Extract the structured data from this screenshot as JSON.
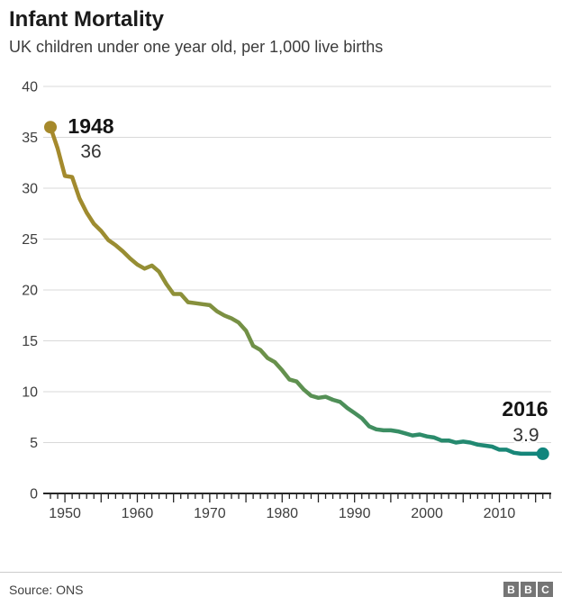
{
  "header": {
    "title": "Infant Mortality",
    "subtitle": "UK children under one year old, per 1,000 live births"
  },
  "chart_data": {
    "type": "line",
    "title": "Infant Mortality",
    "subtitle": "UK children under one year old, per 1,000 live births",
    "xlabel": "",
    "ylabel": "",
    "x": [
      1948,
      1949,
      1950,
      1951,
      1952,
      1953,
      1954,
      1955,
      1956,
      1957,
      1958,
      1959,
      1960,
      1961,
      1962,
      1963,
      1964,
      1965,
      1966,
      1967,
      1968,
      1969,
      1970,
      1971,
      1972,
      1973,
      1974,
      1975,
      1976,
      1977,
      1978,
      1979,
      1980,
      1981,
      1982,
      1983,
      1984,
      1985,
      1986,
      1987,
      1988,
      1989,
      1990,
      1991,
      1992,
      1993,
      1994,
      1995,
      1996,
      1997,
      1998,
      1999,
      2000,
      2001,
      2002,
      2003,
      2004,
      2005,
      2006,
      2007,
      2008,
      2009,
      2010,
      2011,
      2012,
      2013,
      2014,
      2015,
      2016
    ],
    "values": [
      36.0,
      33.9,
      31.2,
      31.1,
      29.0,
      27.6,
      26.5,
      25.8,
      24.9,
      24.4,
      23.8,
      23.1,
      22.5,
      22.1,
      22.4,
      21.8,
      20.6,
      19.6,
      19.6,
      18.8,
      18.7,
      18.6,
      18.5,
      17.9,
      17.5,
      17.2,
      16.8,
      16.0,
      14.5,
      14.1,
      13.3,
      12.9,
      12.1,
      11.2,
      11.0,
      10.2,
      9.6,
      9.4,
      9.5,
      9.2,
      9.0,
      8.4,
      7.9,
      7.4,
      6.6,
      6.3,
      6.2,
      6.2,
      6.1,
      5.9,
      5.7,
      5.8,
      5.6,
      5.5,
      5.2,
      5.2,
      5.0,
      5.1,
      5.0,
      4.8,
      4.7,
      4.6,
      4.3,
      4.3,
      4.0,
      3.9,
      3.9,
      3.9,
      3.9
    ],
    "xlim": [
      1948,
      2017
    ],
    "ylim": [
      0,
      40
    ],
    "y_ticks": [
      0,
      5,
      10,
      15,
      20,
      25,
      30,
      35,
      40
    ],
    "x_tick_labels": [
      "1950",
      "1960",
      "1970",
      "1980",
      "1990",
      "2000",
      "2010"
    ],
    "grid": "horizontal",
    "legend": "none",
    "annotations": {
      "start": {
        "year": "1948",
        "value": "36"
      },
      "end": {
        "year": "2016",
        "value": "3.9"
      }
    },
    "colors": {
      "line_gradient": [
        "#a6892b",
        "#8f9038",
        "#5f9150",
        "#2e8c69",
        "#11857d"
      ],
      "start_dot": "#a6892b",
      "end_dot": "#11857d",
      "gridline": "#d9d9d9",
      "axis": "#262626",
      "tick_text": "#3d3d3d"
    }
  },
  "footer": {
    "source": "Source: ONS",
    "logo_letters": [
      "B",
      "B",
      "C"
    ]
  }
}
